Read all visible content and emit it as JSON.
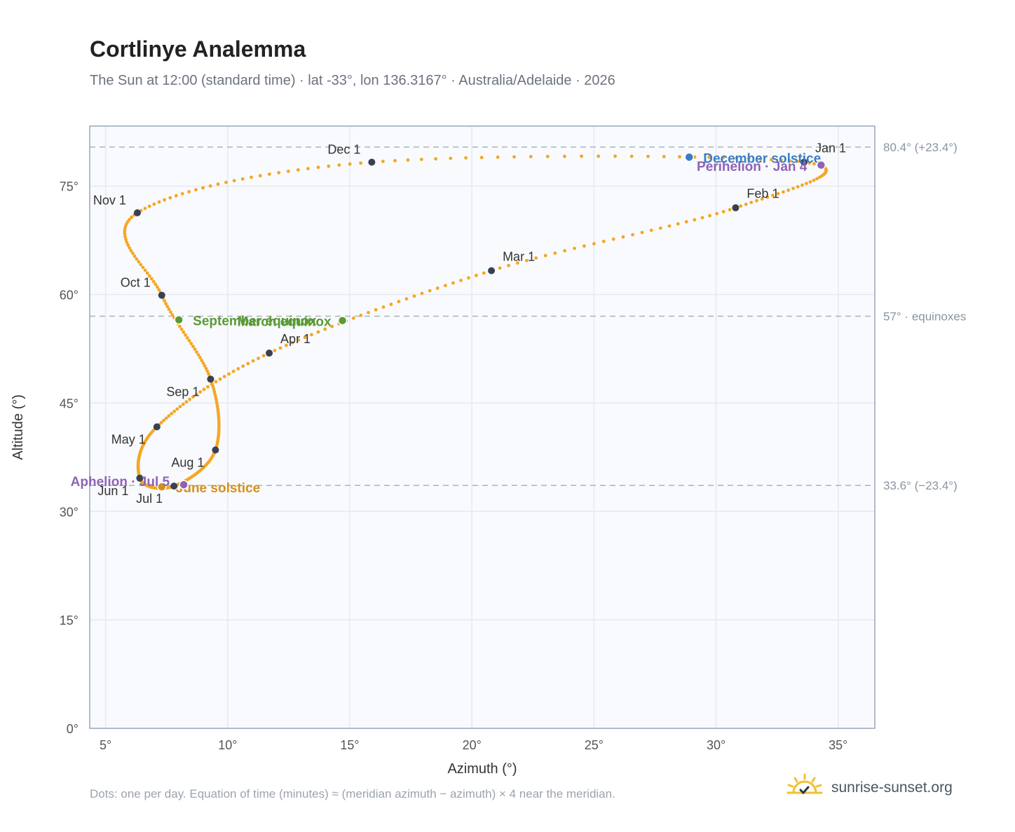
{
  "header": {
    "title": "Cortlinye Analemma",
    "subtitle": "The Sun at 12:00 (standard time) · lat -33°, lon 136.3167° · Australia/Adelaide · 2026"
  },
  "footer": {
    "note": "Dots: one per day. Equation of time (minutes) ≈ (meridian azimuth − azimuth) × 4 near the meridian.",
    "brand": "sunrise-sunset.org",
    "brand_icon": "sunrise-icon"
  },
  "colors": {
    "curve": "#f5a623",
    "month_dot": "#374151",
    "equinox": "#5a9a35",
    "december_solstice": "#3b7dc4",
    "june_solstice": "#d4901c",
    "apsis": "#8e63b5",
    "plot_bg": "#f8fafd",
    "grid": "#e5e9f0",
    "reference": "#aab4c0"
  },
  "chart_data": {
    "type": "scatter",
    "xlabel": "Azimuth (°)",
    "ylabel": "Altitude (°)",
    "xlim": [
      4.35,
      36.5
    ],
    "ylim": [
      0,
      83.3
    ],
    "x_ticks": [
      5,
      10,
      15,
      20,
      25,
      30,
      35
    ],
    "x_tick_labels": [
      "5°",
      "10°",
      "15°",
      "20°",
      "25°",
      "30°",
      "35°"
    ],
    "y_ticks": [
      0,
      15,
      30,
      45,
      60,
      75
    ],
    "y_tick_labels": [
      "0°",
      "15°",
      "30°",
      "45°",
      "60°",
      "75°"
    ],
    "grid": true,
    "reference_lines": [
      {
        "y": 80.4,
        "label": "80.4° (+23.4°)"
      },
      {
        "y": 57.0,
        "label": "57° · equinoxes"
      },
      {
        "y": 33.6,
        "label": "33.6° (−23.4°)"
      }
    ],
    "month_markers": [
      {
        "label": "Jan 1",
        "x": 33.6,
        "y": 78.3
      },
      {
        "label": "Feb 1",
        "x": 30.8,
        "y": 72.0
      },
      {
        "label": "Mar 1",
        "x": 20.8,
        "y": 63.3
      },
      {
        "label": "Apr 1",
        "x": 11.7,
        "y": 51.9
      },
      {
        "label": "May 1",
        "x": 7.1,
        "y": 41.7
      },
      {
        "label": "Jun 1",
        "x": 6.4,
        "y": 34.6
      },
      {
        "label": "Jul 1",
        "x": 7.8,
        "y": 33.5
      },
      {
        "label": "Aug 1",
        "x": 9.5,
        "y": 38.5
      },
      {
        "label": "Sep 1",
        "x": 9.3,
        "y": 48.3
      },
      {
        "label": "Oct 1",
        "x": 7.3,
        "y": 59.9
      },
      {
        "label": "Nov 1",
        "x": 6.3,
        "y": 71.3
      },
      {
        "label": "Dec 1",
        "x": 15.9,
        "y": 78.3
      }
    ],
    "events": [
      {
        "label": "March equinox",
        "x": 14.7,
        "y": 56.4,
        "color": "#5a9a35"
      },
      {
        "label": "September equinox",
        "x": 8.0,
        "y": 56.5,
        "color": "#5a9a35"
      },
      {
        "label": "December solstice",
        "x": 28.9,
        "y": 79.0,
        "color": "#3b7dc4"
      },
      {
        "label": "June solstice",
        "x": 7.3,
        "y": 33.4,
        "color": "#d4901c"
      },
      {
        "label": "Perihelion · Jan 4",
        "x": 34.3,
        "y": 77.9,
        "color": "#8e63b5"
      },
      {
        "label": "Aphelion · Jul 5",
        "x": 8.2,
        "y": 33.7,
        "color": "#8e63b5"
      }
    ]
  }
}
